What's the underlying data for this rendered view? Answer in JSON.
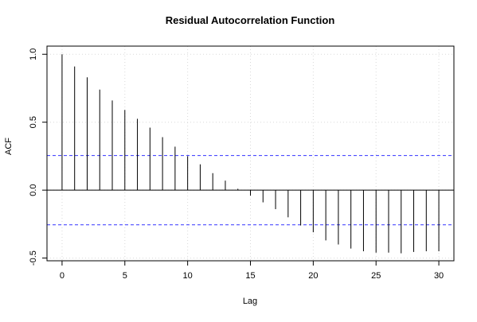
{
  "chart_data": {
    "type": "bar",
    "title": "Residual Autocorrelation Function",
    "xlabel": "Lag",
    "ylabel": "ACF",
    "x": [
      0,
      1,
      2,
      3,
      4,
      5,
      6,
      7,
      8,
      9,
      10,
      11,
      12,
      13,
      14,
      15,
      16,
      17,
      18,
      19,
      20,
      21,
      22,
      23,
      24,
      25,
      26,
      27,
      28,
      29,
      30
    ],
    "values": [
      1.0,
      0.91,
      0.83,
      0.74,
      0.66,
      0.59,
      0.525,
      0.46,
      0.39,
      0.32,
      0.25,
      0.19,
      0.125,
      0.07,
      0.01,
      -0.04,
      -0.09,
      -0.14,
      -0.2,
      -0.26,
      -0.31,
      -0.37,
      -0.4,
      -0.43,
      -0.45,
      -0.46,
      -0.46,
      -0.465,
      -0.455,
      -0.45,
      -0.45
    ],
    "xlim": [
      -1.2,
      31.2
    ],
    "ylim": [
      -0.52,
      1.06
    ],
    "xticks": [
      0,
      5,
      10,
      15,
      20,
      25,
      30
    ],
    "yticks": [
      -0.5,
      0.0,
      0.5,
      1.0
    ],
    "xtick_labels": [
      "0",
      "5",
      "10",
      "15",
      "20",
      "25",
      "30"
    ],
    "ytick_labels": [
      "-0.5",
      "0.0",
      "0.5",
      "1.0"
    ],
    "confidence_band": [
      0.255,
      -0.255
    ],
    "colors": {
      "bars": "#000000",
      "zero_line": "#000000",
      "confidence": "#3333ff",
      "grid": "#d9d9d9",
      "frame": "#000000"
    },
    "grid": true
  }
}
